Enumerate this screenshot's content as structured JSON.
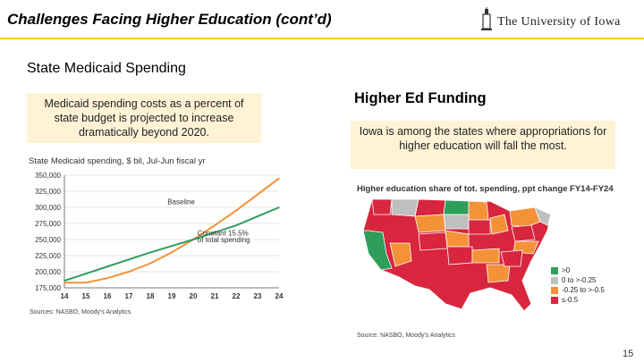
{
  "header": {
    "title": "Challenges Facing Higher Education (cont’d)",
    "logo_text": "The University of Iowa",
    "accent_color": "#FFCD00"
  },
  "left": {
    "section_title": "State Medicaid Spending",
    "callout": "Medicaid spending costs as a percent of state budget is projected to increase dramatically beyond 2020.",
    "source": "Sources: NASBO, Moody's Analytics"
  },
  "right": {
    "section_title": "Higher Ed Funding",
    "callout": "Iowa is among the states where appropriations for higher education will fall the most.",
    "map_title": "Higher education share of tot. spending, ppt change FY14-FY24",
    "source": "Source: NASBO, Moody's Analytics",
    "legend": [
      {
        "label": ">0",
        "color": "#2E9E5B"
      },
      {
        "label": "0 to >-0.25",
        "color": "#BFBFBF"
      },
      {
        "label": "-0.25 to >-0.5",
        "color": "#F39237"
      },
      {
        "label": "≤-0.5",
        "color": "#D7263D"
      }
    ]
  },
  "chart_data": {
    "type": "line",
    "title": "State Medicaid spending, $ bil, Jul-Jun fiscal yr",
    "x": [
      14,
      15,
      16,
      17,
      18,
      19,
      20,
      21,
      22,
      23,
      24
    ],
    "x_tick_labels": [
      "14",
      "15",
      "16",
      "17",
      "18",
      "19",
      "20",
      "21",
      "22",
      "23",
      "24"
    ],
    "y_tick_labels": [
      "175,000",
      "200,000",
      "225,000",
      "250,000",
      "275,000",
      "300,000",
      "325,000",
      "350,000"
    ],
    "ylim": [
      175000,
      350000
    ],
    "series": [
      {
        "name": "Baseline",
        "color": "#F39237",
        "values": [
          183000,
          183000,
          190000,
          200000,
          213000,
          230000,
          250000,
          272000,
          295000,
          320000,
          345000
        ]
      },
      {
        "name": "Constant 15.5% of total spending",
        "color": "#2E9E5B",
        "values": [
          186000,
          197000,
          208000,
          219000,
          230000,
          240000,
          250000,
          261000,
          272000,
          286000,
          300000
        ]
      }
    ],
    "annotations": [
      "Baseline",
      "Constant 15.5%",
      "of total spending"
    ],
    "grid": true
  },
  "page": {
    "number": "15"
  }
}
